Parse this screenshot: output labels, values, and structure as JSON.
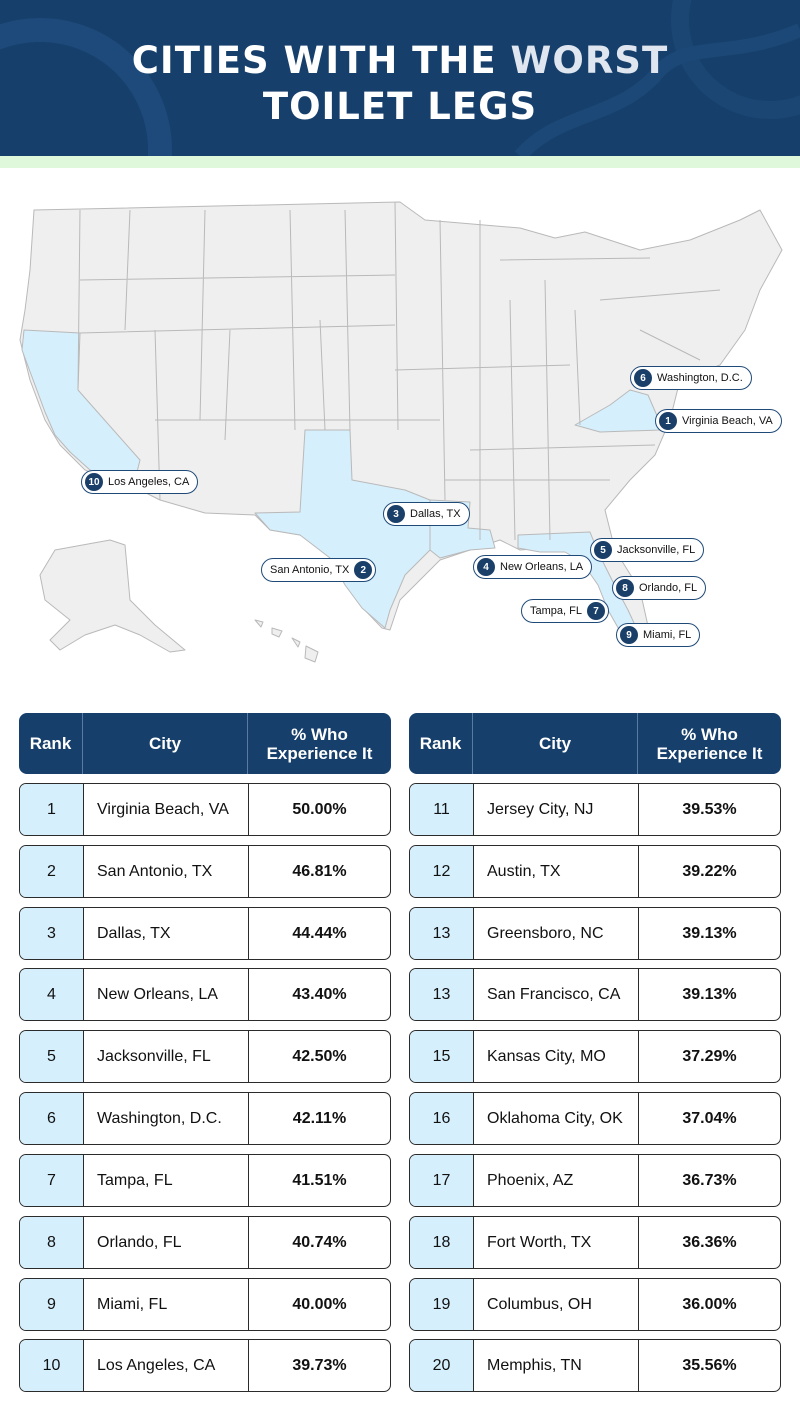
{
  "header": {
    "title_line1_a": "CITIES WITH THE ",
    "title_line1_b": "WORST",
    "title_line2": "TOILET LEGS"
  },
  "map": {
    "highlight_color": "#d6effc",
    "state_color": "#efefef",
    "markers": [
      {
        "rank": "1",
        "label": "Virginia Beach, VA"
      },
      {
        "rank": "2",
        "label": "San Antonio, TX"
      },
      {
        "rank": "3",
        "label": "Dallas, TX"
      },
      {
        "rank": "4",
        "label": "New Orleans, LA"
      },
      {
        "rank": "5",
        "label": "Jacksonville, FL"
      },
      {
        "rank": "6",
        "label": "Washington, D.C."
      },
      {
        "rank": "7",
        "label": "Tampa, FL"
      },
      {
        "rank": "8",
        "label": "Orlando, FL"
      },
      {
        "rank": "9",
        "label": "Miami, FL"
      },
      {
        "rank": "10",
        "label": "Los Angeles, CA"
      }
    ]
  },
  "table": {
    "headers": {
      "rank": "Rank",
      "city": "City",
      "pct": "% Who Experience It"
    },
    "left": [
      {
        "rank": "1",
        "city": "Virginia Beach, VA",
        "pct": "50.00%"
      },
      {
        "rank": "2",
        "city": "San Antonio, TX",
        "pct": "46.81%"
      },
      {
        "rank": "3",
        "city": "Dallas, TX",
        "pct": "44.44%"
      },
      {
        "rank": "4",
        "city": "New Orleans, LA",
        "pct": "43.40%"
      },
      {
        "rank": "5",
        "city": "Jacksonville, FL",
        "pct": "42.50%"
      },
      {
        "rank": "6",
        "city": "Washington, D.C.",
        "pct": "42.11%"
      },
      {
        "rank": "7",
        "city": "Tampa, FL",
        "pct": "41.51%"
      },
      {
        "rank": "8",
        "city": "Orlando, FL",
        "pct": "40.74%"
      },
      {
        "rank": "9",
        "city": "Miami, FL",
        "pct": "40.00%"
      },
      {
        "rank": "10",
        "city": "Los Angeles, CA",
        "pct": "39.73%"
      }
    ],
    "right": [
      {
        "rank": "11",
        "city": "Jersey City, NJ",
        "pct": "39.53%"
      },
      {
        "rank": "12",
        "city": "Austin, TX",
        "pct": "39.22%"
      },
      {
        "rank": "13",
        "city": "Greensboro, NC",
        "pct": "39.13%"
      },
      {
        "rank": "13",
        "city": "San Francisco, CA",
        "pct": "39.13%"
      },
      {
        "rank": "15",
        "city": "Kansas City, MO",
        "pct": "37.29%"
      },
      {
        "rank": "16",
        "city": "Oklahoma City, OK",
        "pct": "37.04%"
      },
      {
        "rank": "17",
        "city": "Phoenix, AZ",
        "pct": "36.73%"
      },
      {
        "rank": "18",
        "city": "Fort Worth, TX",
        "pct": "36.36%"
      },
      {
        "rank": "19",
        "city": "Columbus, OH",
        "pct": "36.00%"
      },
      {
        "rank": "20",
        "city": "Memphis, TN",
        "pct": "35.56%"
      }
    ]
  }
}
